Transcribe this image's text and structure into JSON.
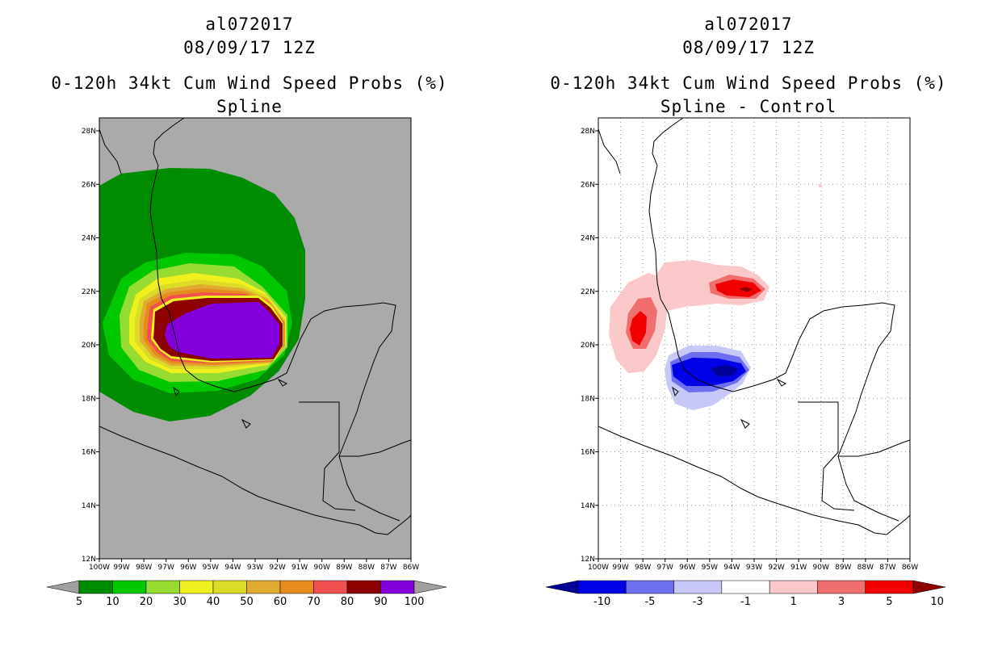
{
  "panels": [
    {
      "storm": "al072017",
      "datetime": "08/09/17 12Z",
      "product": "0-120h 34kt Cum Wind Speed Probs (%)",
      "subtitle": "Spline",
      "colorbar": {
        "labels": [
          "5",
          "10",
          "20",
          "30",
          "40",
          "50",
          "60",
          "70",
          "80",
          "90",
          "100"
        ],
        "colors": [
          "#008c00",
          "#00c800",
          "#96dc32",
          "#f0f01e",
          "#dcdc28",
          "#e1aa32",
          "#e68c1e",
          "#f05050",
          "#8c0000",
          "#8200dc"
        ],
        "end_colors": [
          "#a0a0a0",
          "#a0a0a0"
        ]
      }
    },
    {
      "storm": "al072017",
      "datetime": "08/09/17 12Z",
      "product": "0-120h 34kt Cum Wind Speed Probs (%)",
      "subtitle": "Spline - Control",
      "colorbar": {
        "labels": [
          "-10",
          "-5",
          "-3",
          "-1",
          "1",
          "3",
          "5",
          "10"
        ],
        "colors": [
          "#0000e6",
          "#6e6ef0",
          "#c8c8f8",
          "#ffffff",
          "#fac8c8",
          "#f06e6e",
          "#f00000"
        ],
        "end_colors": [
          "#000096",
          "#8c0000"
        ]
      }
    }
  ],
  "axes": {
    "lat_labels": [
      "28N",
      "26N",
      "24N",
      "22N",
      "20N",
      "18N",
      "16N",
      "14N",
      "12N"
    ],
    "lon_labels": [
      "100W",
      "99W",
      "98W",
      "97W",
      "96W",
      "95W",
      "94W",
      "93W",
      "92W",
      "91W",
      "90W",
      "89W",
      "88W",
      "87W",
      "86W"
    ]
  },
  "colors": {
    "land_ocean_bg_left": "#aaaaaa",
    "background_right": "#ffffff",
    "coast": "#000000"
  }
}
